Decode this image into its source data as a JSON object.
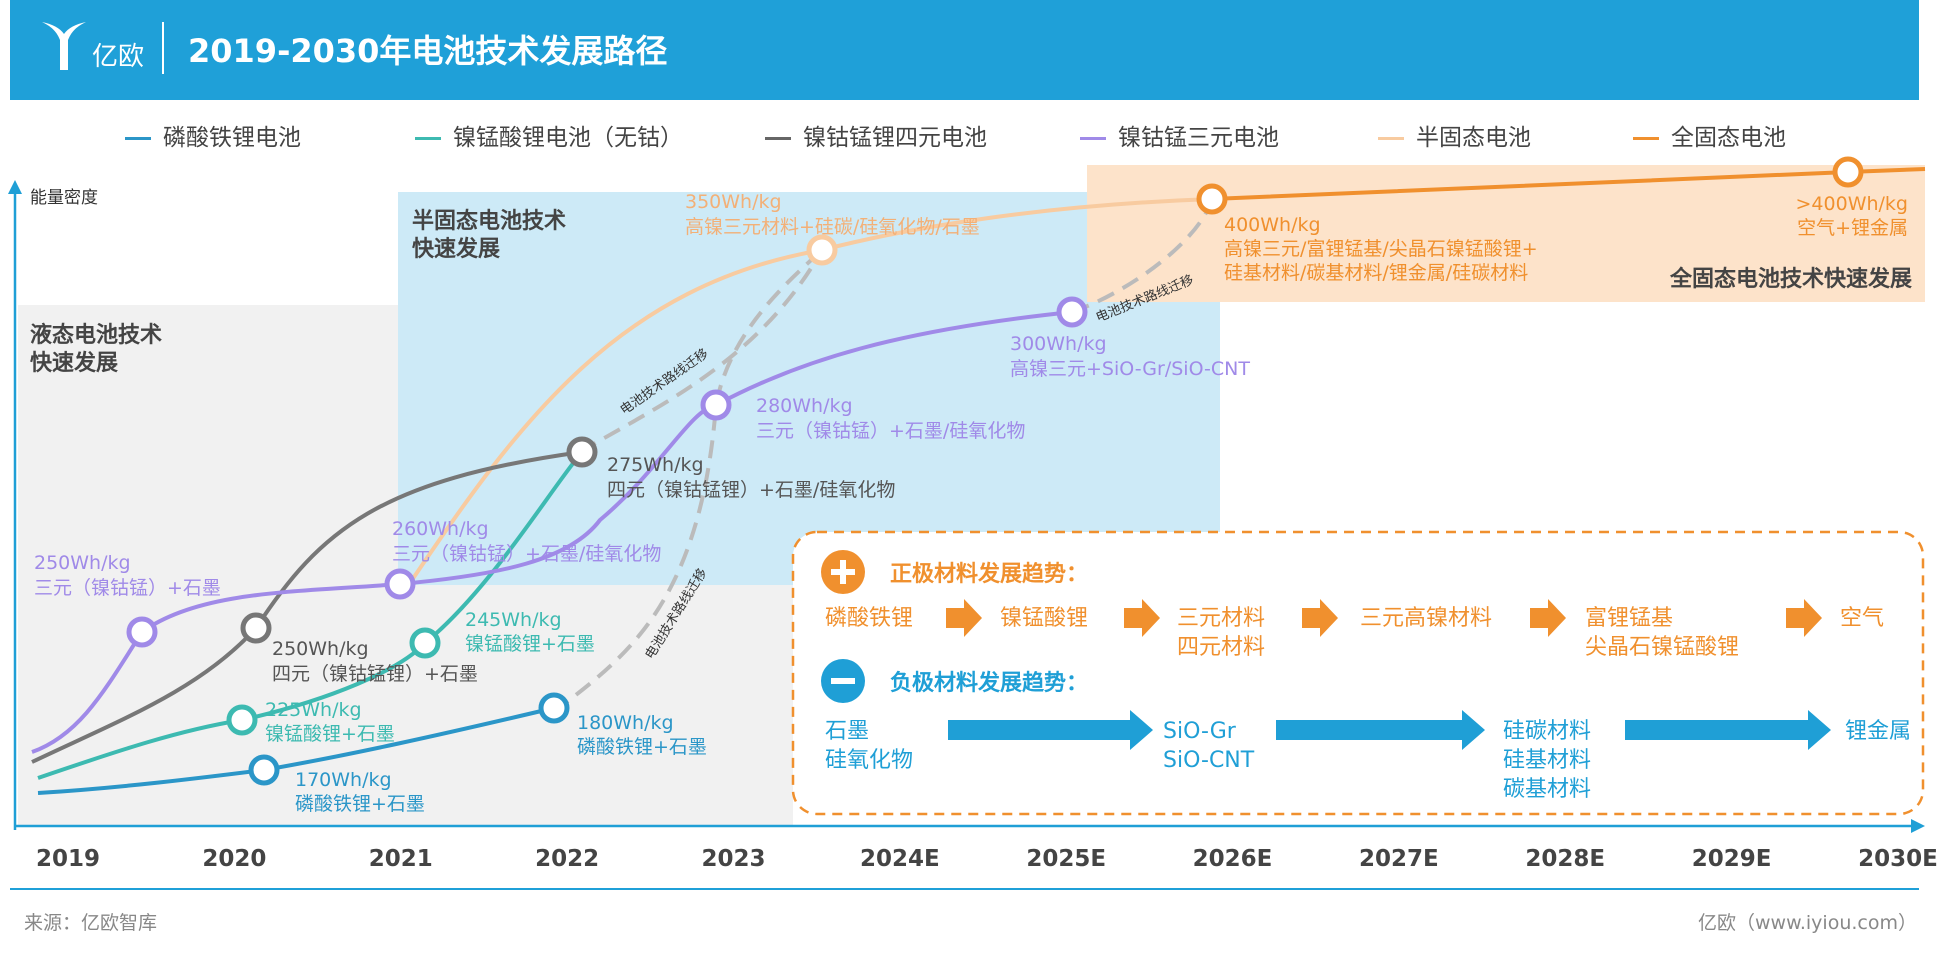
{
  "header": {
    "logo_text": "亿欧",
    "title": "2019-2030年电池技术发展路径"
  },
  "legend": [
    {
      "label": "磷酸铁锂电池",
      "color": "#2b96c8"
    },
    {
      "label": "镍锰酸锂电池（无钴）",
      "color": "#3dbab1"
    },
    {
      "label": "镍钴锰锂四元电池",
      "color": "#666666"
    },
    {
      "label": "镍钴锰三元电池",
      "color": "#a08ae8"
    },
    {
      "label": "半固态电池",
      "color": "#f8cba0"
    },
    {
      "label": "全固态电池",
      "color": "#f0902e"
    }
  ],
  "chart_data": {
    "type": "line",
    "title": "2019-2030年电池技术发展路径",
    "ylabel": "能量密度",
    "xlabel": "",
    "categories": [
      "2019",
      "2020",
      "2021",
      "2022",
      "2023",
      "2024E",
      "2025E",
      "2026E",
      "2027E",
      "2028E",
      "2029E",
      "2030E"
    ],
    "regions": [
      {
        "label": "液态电池技术\n快速发展"
      },
      {
        "label": "半固态电池技术\n快速发展"
      },
      {
        "label": "全固态电池技术快速发展"
      }
    ],
    "series": [
      {
        "name": "磷酸铁锂电池",
        "color": "#2b96c8",
        "points": [
          {
            "label": "170Wh/kg",
            "detail": "磷酸铁锂+石墨"
          },
          {
            "label": "180Wh/kg",
            "detail": "磷酸铁锂+石墨"
          }
        ]
      },
      {
        "name": "镍锰酸锂电池（无钴）",
        "color": "#3dbab1",
        "points": [
          {
            "label": "225Wh/kg",
            "detail": "镍锰酸锂+石墨"
          },
          {
            "label": "245Wh/kg",
            "detail": "镍锰酸锂+石墨"
          }
        ]
      },
      {
        "name": "镍钴锰锂四元电池",
        "color": "#666666",
        "points": [
          {
            "label": "250Wh/kg",
            "detail": "四元（镍钴锰锂）+石墨"
          },
          {
            "label": "275Wh/kg",
            "detail": "四元（镍钴锰锂）+石墨/硅氧化物"
          }
        ]
      },
      {
        "name": "镍钴锰三元电池",
        "color": "#a08ae8",
        "points": [
          {
            "label": "250Wh/kg",
            "detail": "三元（镍钴锰）+石墨"
          },
          {
            "label": "260Wh/kg",
            "detail": "三元（镍钴锰）+石墨/硅氧化物"
          },
          {
            "label": "280Wh/kg",
            "detail": "三元（镍钴锰）+石墨/硅氧化物"
          },
          {
            "label": "300Wh/kg",
            "detail": "高镍三元+SiO-Gr/SiO-CNT"
          }
        ]
      },
      {
        "name": "半固态电池",
        "color": "#f8cba0",
        "points": [
          {
            "label": "350Wh/kg",
            "detail": "高镍三元材料+硅碳/硅氧化物/石墨"
          }
        ]
      },
      {
        "name": "全固态电池",
        "color": "#f0902e",
        "points": [
          {
            "label": "400Wh/kg",
            "detail": "高镍三元/富锂锰基/尖晶石镍锰酸锂+",
            "detail2": "硅基材料/碳基材料/锂金属/硅碳材料"
          },
          {
            "label": ">400Wh/kg",
            "detail": "空气+锂金属"
          }
        ]
      }
    ],
    "migration_label": "电池技术路线迁移"
  },
  "trends": {
    "positive_title": "正极材料发展趋势：",
    "positive_steps": [
      {
        "line1": "磷酸铁锂",
        "line2": ""
      },
      {
        "line1": "镍锰酸锂",
        "line2": ""
      },
      {
        "line1": "三元材料",
        "line2": "四元材料"
      },
      {
        "line1": "三元高镍材料",
        "line2": ""
      },
      {
        "line1": "富锂锰基",
        "line2": "尖晶石镍锰酸锂"
      },
      {
        "line1": "空气",
        "line2": ""
      }
    ],
    "negative_title": "负极材料发展趋势：",
    "negative_steps": [
      {
        "line1": "石墨",
        "line2": "硅氧化物",
        "line3": ""
      },
      {
        "line1": "SiO-Gr",
        "line2": "SiO-CNT",
        "line3": ""
      },
      {
        "line1": "硅碳材料",
        "line2": "硅基材料",
        "line3": "碳基材料"
      },
      {
        "line1": "锂金属",
        "line2": "",
        "line3": ""
      }
    ],
    "orange": "#f0902e",
    "blue": "#1f9fd6"
  },
  "footer": {
    "source": "来源：亿欧智库",
    "site": "亿欧（www.iyiou.com）"
  }
}
